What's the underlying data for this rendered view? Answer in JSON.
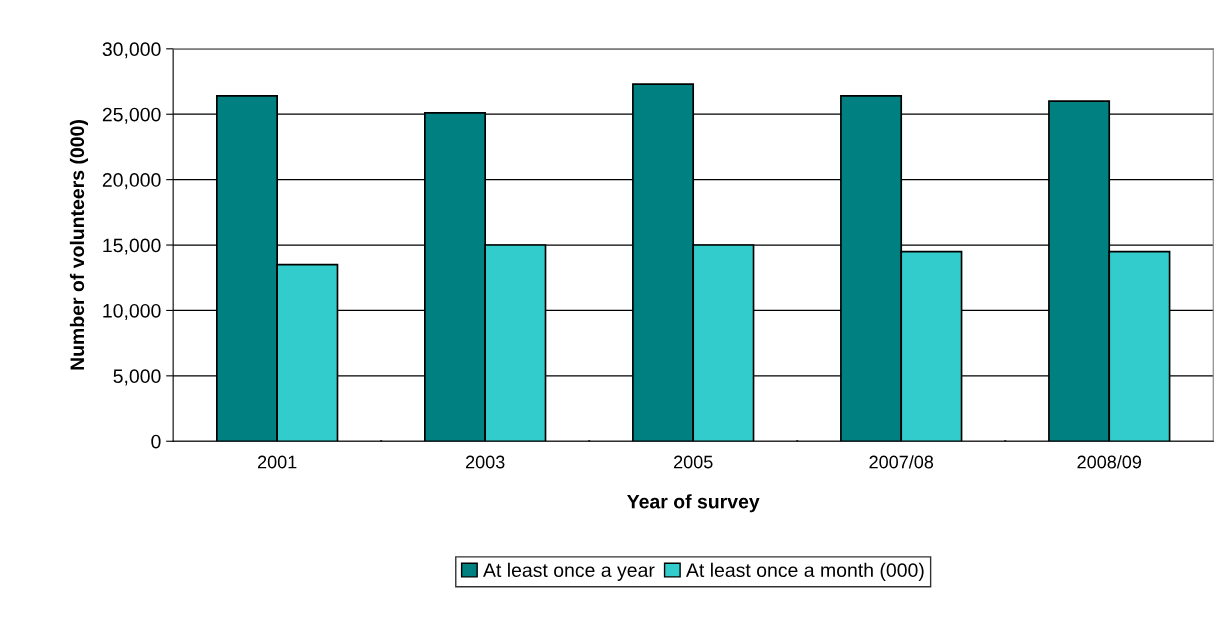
{
  "chart_data": {
    "type": "bar",
    "xlabel": "Year of survey",
    "ylabel": "Number of volunteers (000)",
    "categories": [
      "2001",
      "2003",
      "2005",
      "2007/08",
      "2008/09"
    ],
    "series": [
      {
        "name": "At least once a year",
        "color": "#008080",
        "values": [
          26400,
          25100,
          27300,
          26400,
          26000
        ]
      },
      {
        "name": "At least once a month (000)",
        "color": "#33cccc",
        "values": [
          13500,
          15000,
          15000,
          14500,
          14500
        ]
      }
    ],
    "ylim": [
      0,
      30000
    ],
    "yticks": [
      {
        "value": 0,
        "label": "0"
      },
      {
        "value": 5000,
        "label": "5,000"
      },
      {
        "value": 10000,
        "label": "10,000"
      },
      {
        "value": 15000,
        "label": "15,000"
      },
      {
        "value": 20000,
        "label": "20,000"
      },
      {
        "value": 25000,
        "label": "25,000"
      },
      {
        "value": 30000,
        "label": "30,000"
      }
    ],
    "grid": "y",
    "legend": "bottom"
  }
}
